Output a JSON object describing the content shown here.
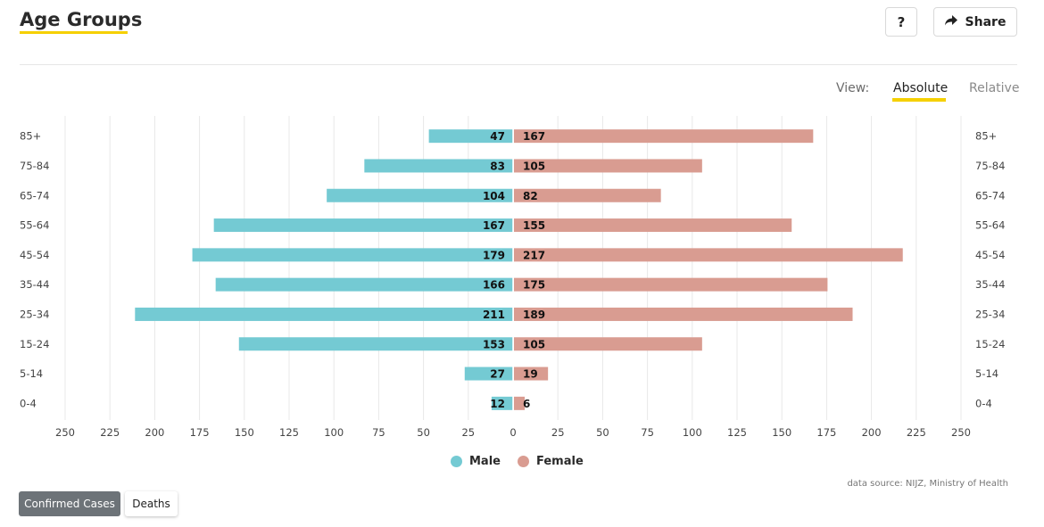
{
  "header": {
    "title": "Age Groups",
    "help_label": "?",
    "share_label": "Share",
    "share_icon": "share-arrow-icon"
  },
  "view_toggle": {
    "label": "View:",
    "options": [
      "Absolute",
      "Relative"
    ],
    "selected": "Absolute"
  },
  "chart_data": {
    "type": "bar",
    "orientation": "horizontal",
    "layout": "population-pyramid",
    "categories": [
      "85+",
      "75-84",
      "65-74",
      "55-64",
      "45-54",
      "35-44",
      "25-34",
      "15-24",
      "5-14",
      "0-4"
    ],
    "series": [
      {
        "name": "Male",
        "color": "#74cad3",
        "side": "left",
        "values": [
          47,
          83,
          104,
          167,
          179,
          166,
          211,
          153,
          27,
          12
        ]
      },
      {
        "name": "Female",
        "color": "#d99c91",
        "side": "right",
        "values": [
          167,
          105,
          82,
          155,
          217,
          175,
          189,
          105,
          19,
          6
        ]
      }
    ],
    "x_ticks": [
      250,
      225,
      200,
      175,
      150,
      125,
      100,
      75,
      50,
      25,
      0,
      25,
      50,
      75,
      100,
      125,
      150,
      175,
      200,
      225,
      250
    ],
    "xlim": [
      -250,
      250
    ],
    "grid": true,
    "legend": "bottom-center",
    "data_labels": true
  },
  "source_text": "data source: NIJZ, Ministry of Health",
  "tabs": [
    {
      "label": "Confirmed Cases",
      "active": true
    },
    {
      "label": "Deaths",
      "active": false
    }
  ],
  "colors": {
    "accent": "#f5d000",
    "male": "#74cad3",
    "female": "#d99c91",
    "active_tab": "#6d7378"
  }
}
